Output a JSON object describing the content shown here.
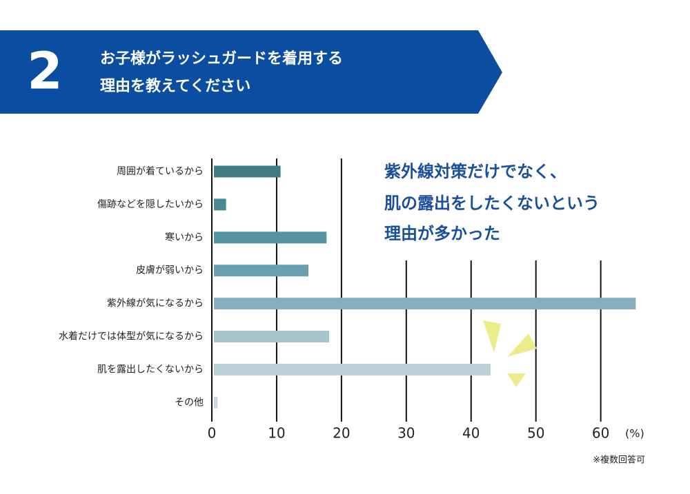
{
  "header": {
    "number": "2",
    "title_lines": [
      "お子様がラッシュガードを着用する",
      "理由を教えてください"
    ]
  },
  "chart_data": {
    "type": "bar",
    "orientation": "horizontal",
    "categories": [
      "周囲が着ているから",
      "傷跡などを隠したいから",
      "寒いから",
      "皮膚が弱いから",
      "紫外線が気になるから",
      "水着だけでは体型が気になるから",
      "肌を露出したくないから",
      "その他"
    ],
    "values": [
      10.6,
      2.2,
      17.7,
      14.9,
      65.4,
      18.1,
      43,
      0.9
    ],
    "colors": [
      "#3f7c84",
      "#4a8894",
      "#5494a3",
      "#68a0b2",
      "#87adbe",
      "#a6c3cb",
      "#bcd1d7",
      "#c9dadf"
    ],
    "xlim": [
      0,
      66
    ],
    "xticks": [
      0,
      10,
      20,
      30,
      40,
      50,
      60
    ],
    "x_unit_label": "(%)",
    "grid": true,
    "annotation_lines": [
      "紫外線対策だけでなく、",
      "肌の露出をしたくないという",
      "理由が多かった"
    ],
    "note": "※複数回答可"
  }
}
